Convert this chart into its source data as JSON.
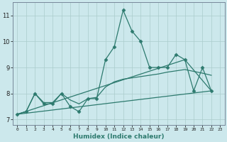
{
  "background_color": "#cce8ec",
  "grid_color": "#aacccc",
  "line_color": "#2d7a6e",
  "x_labels": [
    "0",
    "1",
    "2",
    "3",
    "4",
    "5",
    "6",
    "7",
    "8",
    "9",
    "10",
    "11",
    "12",
    "13",
    "14",
    "15",
    "16",
    "17",
    "18",
    "19",
    "20",
    "21",
    "22",
    "23"
  ],
  "xlabel": "Humidex (Indice chaleur)",
  "ylim": [
    6.8,
    11.5
  ],
  "xlim": [
    -0.5,
    23.5
  ],
  "yticks": [
    7,
    8,
    9,
    10,
    11
  ],
  "series_main": {
    "x": [
      0,
      1,
      2,
      3,
      4,
      5,
      6,
      7,
      8,
      9,
      10,
      11,
      12,
      13,
      14,
      15,
      16,
      17,
      18,
      19,
      20,
      21,
      22
    ],
    "y": [
      7.2,
      7.3,
      8.0,
      7.6,
      7.6,
      8.0,
      7.5,
      7.3,
      7.8,
      7.8,
      9.3,
      9.8,
      11.2,
      10.4,
      10.0,
      9.0,
      9.0,
      9.0,
      9.5,
      9.3,
      8.1,
      9.0,
      8.1
    ]
  },
  "series_smooth": {
    "x": [
      0,
      1,
      2,
      3,
      4,
      5,
      6,
      7,
      8,
      9,
      10,
      11,
      12,
      13,
      14,
      15,
      16,
      17,
      18,
      19,
      20,
      21,
      22
    ],
    "y": [
      7.2,
      7.3,
      8.0,
      7.65,
      7.65,
      8.0,
      7.75,
      7.6,
      7.8,
      7.85,
      8.25,
      8.45,
      8.55,
      8.6,
      8.65,
      8.7,
      8.75,
      8.82,
      8.87,
      8.92,
      8.85,
      8.78,
      8.7
    ]
  },
  "series_line1": {
    "x": [
      0,
      22
    ],
    "y": [
      7.2,
      8.1
    ]
  },
  "series_line2": {
    "x": [
      0,
      19,
      22
    ],
    "y": [
      7.2,
      9.3,
      8.1
    ]
  }
}
